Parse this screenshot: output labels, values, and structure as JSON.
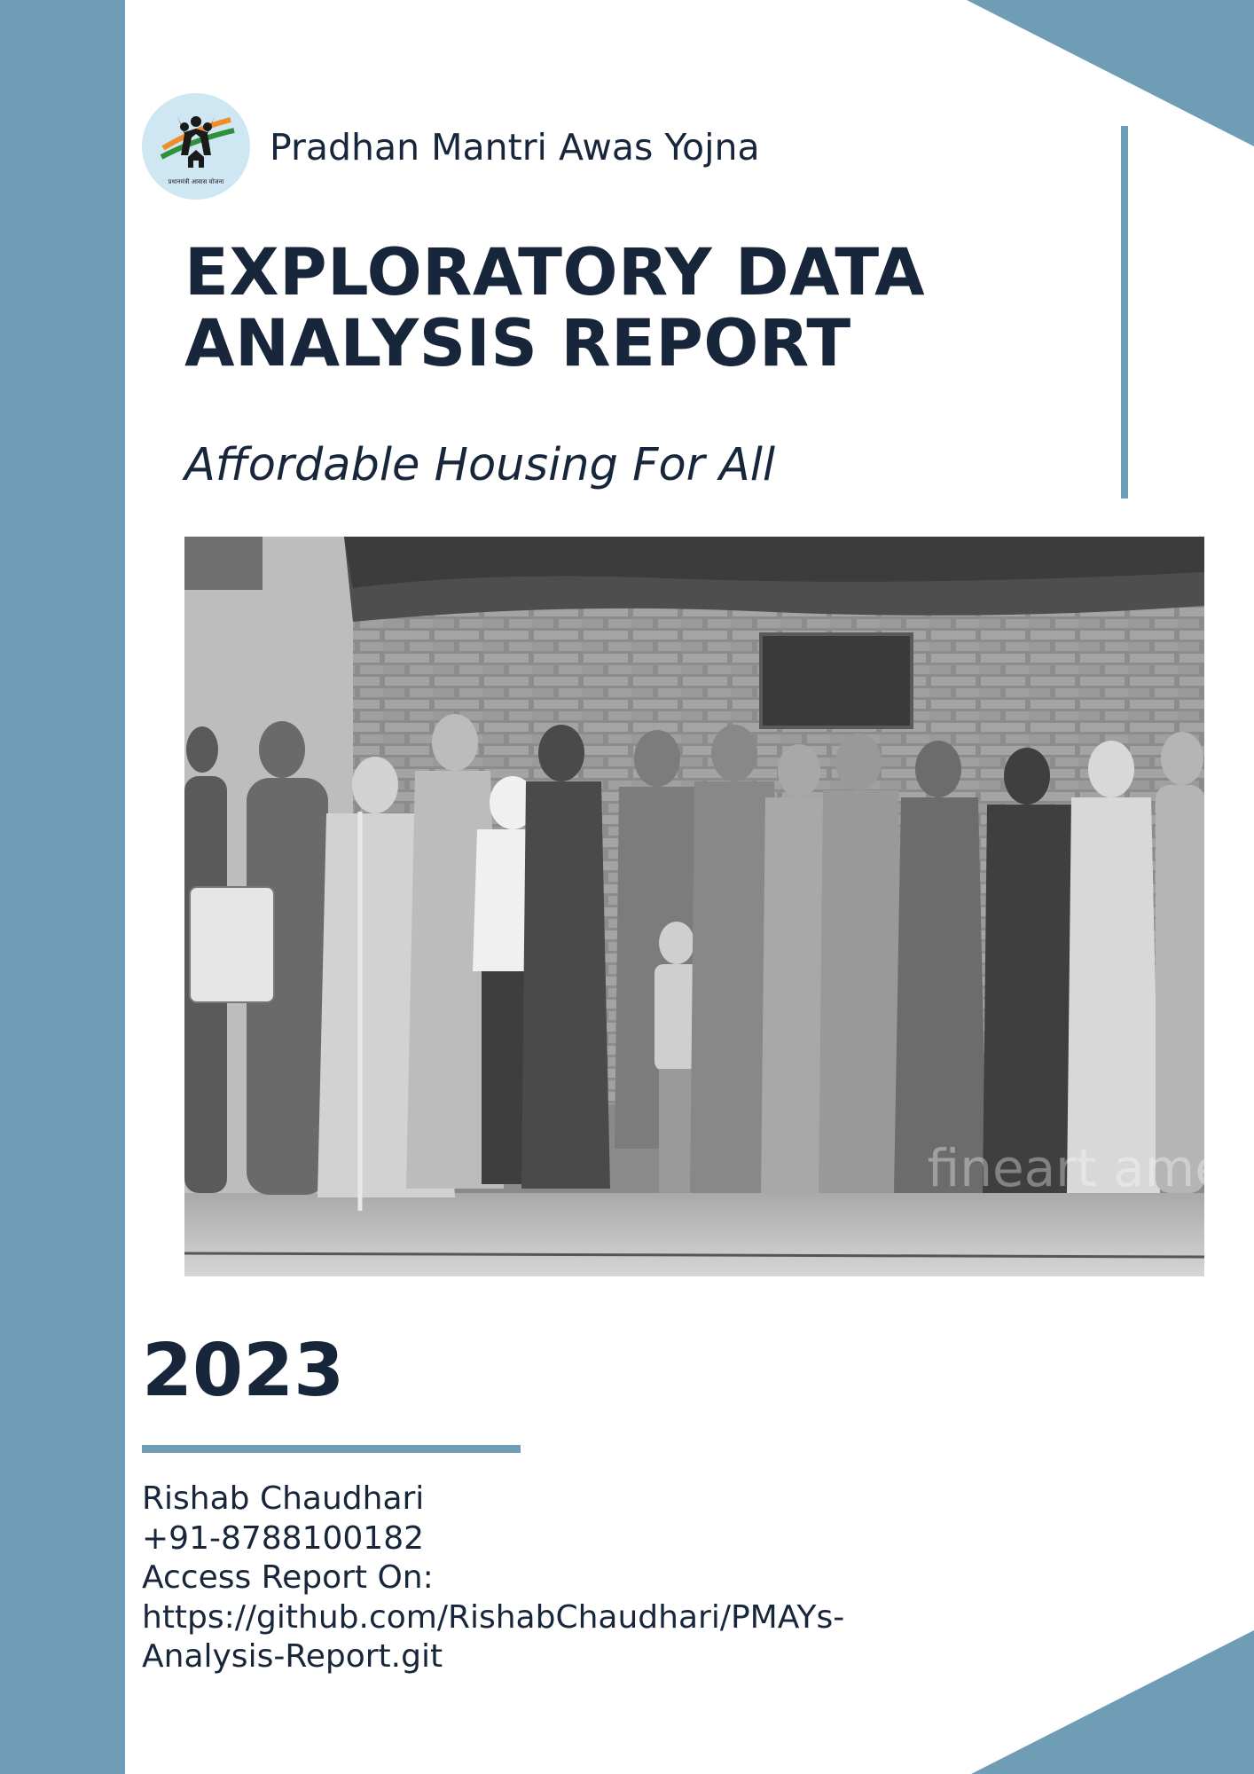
{
  "header": {
    "logo_caption": "प्रधानमंत्री आवास योजना",
    "org_name": "Pradhan Mantri Awas Yojna"
  },
  "cover": {
    "title_line1": "EXPLORATORY DATA",
    "title_line2": "ANALYSIS REPORT",
    "subtitle": "Affordable Housing For All",
    "photo_watermark": "fineart america",
    "year": "2023"
  },
  "author": {
    "name": "Rishab Chaudhari",
    "phone": "+91-8788100182",
    "access_label": "Access Report On:",
    "link_line1": "https://github.com/RishabChaudhari/PMAYs-",
    "link_line2": "Analysis-Report.git"
  },
  "colors": {
    "accent": "#6f9db6",
    "text": "#17263a",
    "logo_bg": "#cfe6f3"
  }
}
